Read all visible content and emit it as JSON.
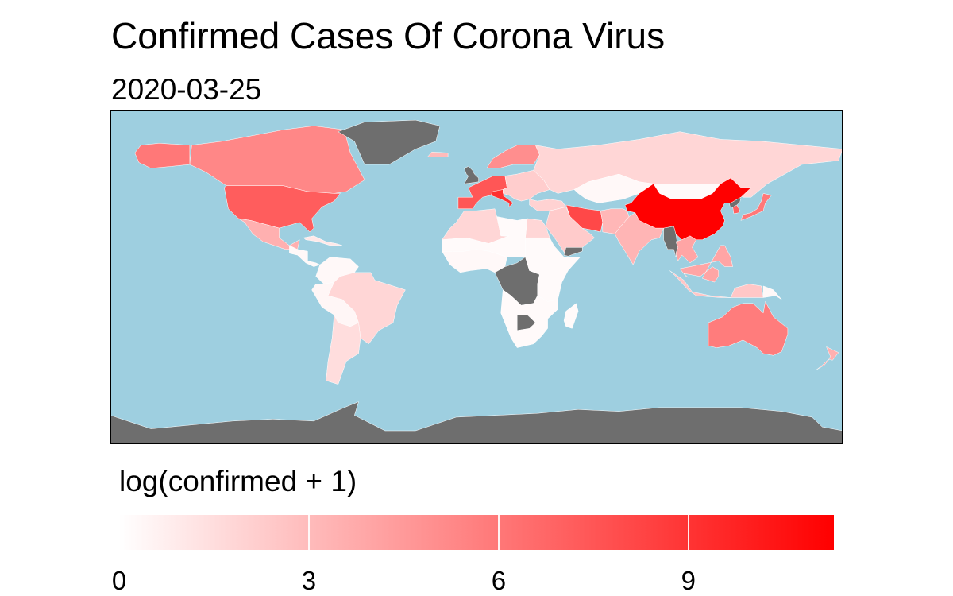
{
  "title": "Confirmed Cases Of Corona Virus",
  "subtitle": "2020-03-25",
  "legend": {
    "title": "log(confirmed + 1)",
    "ticks": [
      "0",
      "3",
      "6",
      "9"
    ],
    "range": [
      0,
      11.3
    ],
    "low_color": "#FFFFFF",
    "high_color": "#FF0000"
  },
  "colors": {
    "ocean": "#9ECFE0",
    "no_data": "#6E6E6E",
    "border": "#FFFFFF",
    "frame": "#000000"
  },
  "chart_data": {
    "type": "choropleth",
    "projection": "equirectangular",
    "date": "2020-03-25",
    "value": "log(confirmed + 1)",
    "scale": {
      "min": 0,
      "max": 11.3,
      "low": "#FFFFFF",
      "high": "#FF0000"
    },
    "regions": [
      {
        "region": "Canada",
        "value": 5.3
      },
      {
        "region": "Alaska (USA)",
        "value": 6.0
      },
      {
        "region": "USA",
        "value": 7.2
      },
      {
        "region": "Mexico",
        "value": 3.5
      },
      {
        "region": "Central America",
        "value": 0.3
      },
      {
        "region": "Caribbean",
        "value": 1.0
      },
      {
        "region": "Colombia / Venezuela",
        "value": 0.3
      },
      {
        "region": "Brazil",
        "value": 1.8
      },
      {
        "region": "Peru / Bolivia / Paraguay",
        "value": 0.4
      },
      {
        "region": "Argentina / Chile",
        "value": 1.5
      },
      {
        "region": "Greenland",
        "value": null
      },
      {
        "region": "Iceland",
        "value": 3.0
      },
      {
        "region": "United Kingdom",
        "value": null
      },
      {
        "region": "Norway / Sweden / Finland",
        "value": 5.0
      },
      {
        "region": "France / Spain / Germany",
        "value": 7.5
      },
      {
        "region": "Italy",
        "value": 9.2
      },
      {
        "region": "Eastern Europe",
        "value": 2.2
      },
      {
        "region": "Russia",
        "value": 1.8
      },
      {
        "region": "Kazakhstan",
        "value": 0.3
      },
      {
        "region": "Mongolia",
        "value": 0.2
      },
      {
        "region": "Turkey",
        "value": 2.0
      },
      {
        "region": "Iran",
        "value": 8.1
      },
      {
        "region": "Saudi Arabia / Middle East",
        "value": 2.3
      },
      {
        "region": "Yemen",
        "value": null
      },
      {
        "region": "Afghanistan / Pakistan",
        "value": 3.2
      },
      {
        "region": "India",
        "value": 3.3
      },
      {
        "region": "Myanmar",
        "value": null
      },
      {
        "region": "Thailand / Vietnam",
        "value": 4.0
      },
      {
        "region": "Malaysia / Philippines",
        "value": 4.0
      },
      {
        "region": "Indonesia",
        "value": 2.5
      },
      {
        "region": "China",
        "value": 11.3
      },
      {
        "region": "North Korea",
        "value": null
      },
      {
        "region": "South Korea",
        "value": 7.0
      },
      {
        "region": "Japan",
        "value": 6.0
      },
      {
        "region": "North Africa (Morocco / Algeria / Egypt)",
        "value": 1.8
      },
      {
        "region": "Libya / Sahel",
        "value": 0.2
      },
      {
        "region": "West Africa",
        "value": 0.3
      },
      {
        "region": "Central Africa (DR Congo region)",
        "value": null
      },
      {
        "region": "East Africa",
        "value": 0.2
      },
      {
        "region": "Southern Africa",
        "value": 0.2
      },
      {
        "region": "Botswana",
        "value": null
      },
      {
        "region": "Madagascar",
        "value": 0.2
      },
      {
        "region": "Australia",
        "value": 5.8
      },
      {
        "region": "New Zealand",
        "value": 3.5
      },
      {
        "region": "Papua New Guinea",
        "value": 0.3
      },
      {
        "region": "Antarctica",
        "value": null
      }
    ]
  }
}
